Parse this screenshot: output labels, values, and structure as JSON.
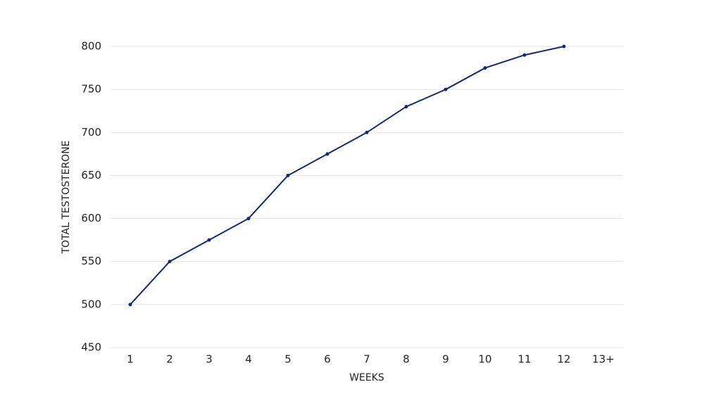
{
  "chart_data": {
    "type": "line",
    "x_label": "WEEKS",
    "y_label": "TOTAL TESTOSTERONE",
    "categories": [
      "1",
      "2",
      "3",
      "4",
      "5",
      "6",
      "7",
      "8",
      "9",
      "10",
      "11",
      "12",
      "13+"
    ],
    "series": [
      {
        "color": "#14287a",
        "values": [
          500,
          550,
          575,
          600,
          650,
          675,
          700,
          730,
          750,
          775,
          790,
          800,
          null
        ]
      }
    ],
    "ylim": [
      450,
      800
    ],
    "yticks": [
      450,
      500,
      550,
      600,
      650,
      700,
      750,
      800
    ],
    "grid": true
  }
}
